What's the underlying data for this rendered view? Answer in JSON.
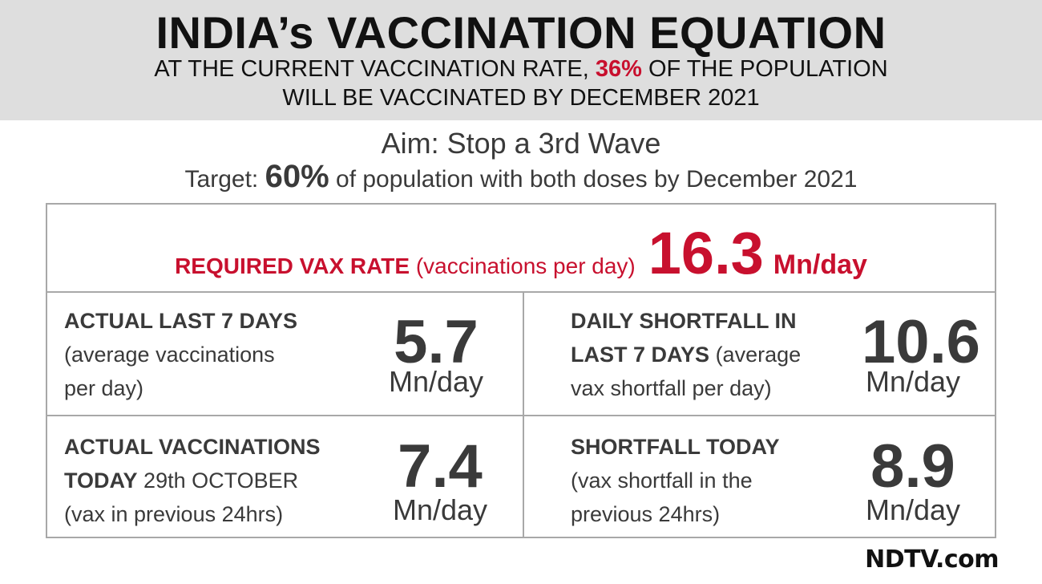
{
  "header": {
    "title": "INDIA’s VACCINATION EQUATION",
    "sub1_pre": "AT THE CURRENT VACCINATION RATE, ",
    "sub1_pct": "36%",
    "sub1_post": " OF THE POPULATION",
    "sub2": "WILL BE VACCINATED BY DECEMBER 2021"
  },
  "aim": "Aim: Stop a 3rd Wave",
  "target": {
    "pre": "Target: ",
    "pct": "60%",
    "post": " of population with both doses by December 2021"
  },
  "required": {
    "label": "REQUIRED VAX RATE",
    "paren": " (vaccinations per day)",
    "value": "16.3",
    "unit": "Mn/day"
  },
  "cells": {
    "actual7": {
      "line1_bold": "ACTUAL LAST 7 DAYS",
      "line2": "(average vaccinations",
      "line3": "per day)",
      "value": "5.7",
      "unit": "Mn/day"
    },
    "shortfall7": {
      "line1_bold": "DAILY SHORTFALL IN",
      "line2_bold": "LAST 7 DAYS",
      "line2_rest": " (average",
      "line3": "vax shortfall per day)",
      "value": "10.6",
      "unit": "Mn/day"
    },
    "today": {
      "line1_bold": "ACTUAL VACCINATIONS",
      "line2_bold": "TODAY",
      "line2_rest": " 29th OCTOBER",
      "line3": "(vax in previous 24hrs)",
      "value": "7.4",
      "unit": "Mn/day"
    },
    "shortfall_today": {
      "line1_bold": "SHORTFALL TODAY",
      "line2": "(vax shortfall in the",
      "line3": "previous 24hrs)",
      "value": "8.9",
      "unit": "Mn/day"
    }
  },
  "logo": "NDTV.com",
  "colors": {
    "accent": "#c8102e",
    "header_bg": "#dedede",
    "border": "#a8a8a8",
    "text": "#3a3a3a"
  }
}
